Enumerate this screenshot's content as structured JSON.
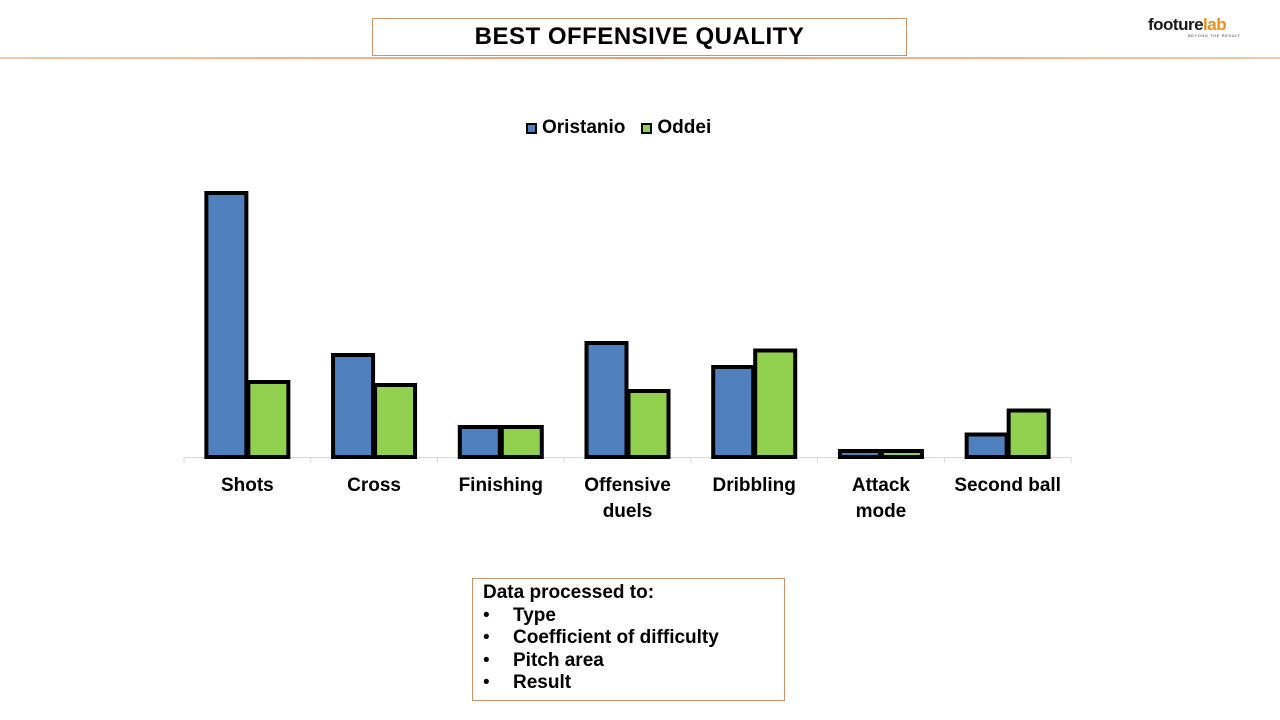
{
  "header": {
    "title": "BEST OFFENSIVE QUALITY",
    "logo_text_dark": "footure",
    "logo_text_accent": "lab",
    "logo_tagline": "BEYOND THE RESULT"
  },
  "colors": {
    "oristanio": "#4f7fbd",
    "oddei": "#92d050",
    "accent": "#e8901e",
    "frame": "#c8956b"
  },
  "chart_data": {
    "type": "bar",
    "title": "",
    "xlabel": "",
    "ylabel": "",
    "categories": [
      "Shots",
      "Cross",
      "Finishing",
      "Offensive duels",
      "Dribbling",
      "Attack mode",
      "Second ball"
    ],
    "series": [
      {
        "name": "Oristanio",
        "values": [
          88,
          34,
          10,
          38,
          30,
          2,
          7.5
        ]
      },
      {
        "name": "Oddei",
        "values": [
          25,
          24,
          10,
          22,
          35.5,
          2,
          15.5
        ]
      }
    ],
    "ylim": [
      0,
      100
    ],
    "grid": false,
    "legend_position": "top"
  },
  "note": {
    "heading": "Data processed to:",
    "items": [
      "Type",
      "Coefficient of difficulty",
      "Pitch area",
      "Result"
    ]
  }
}
